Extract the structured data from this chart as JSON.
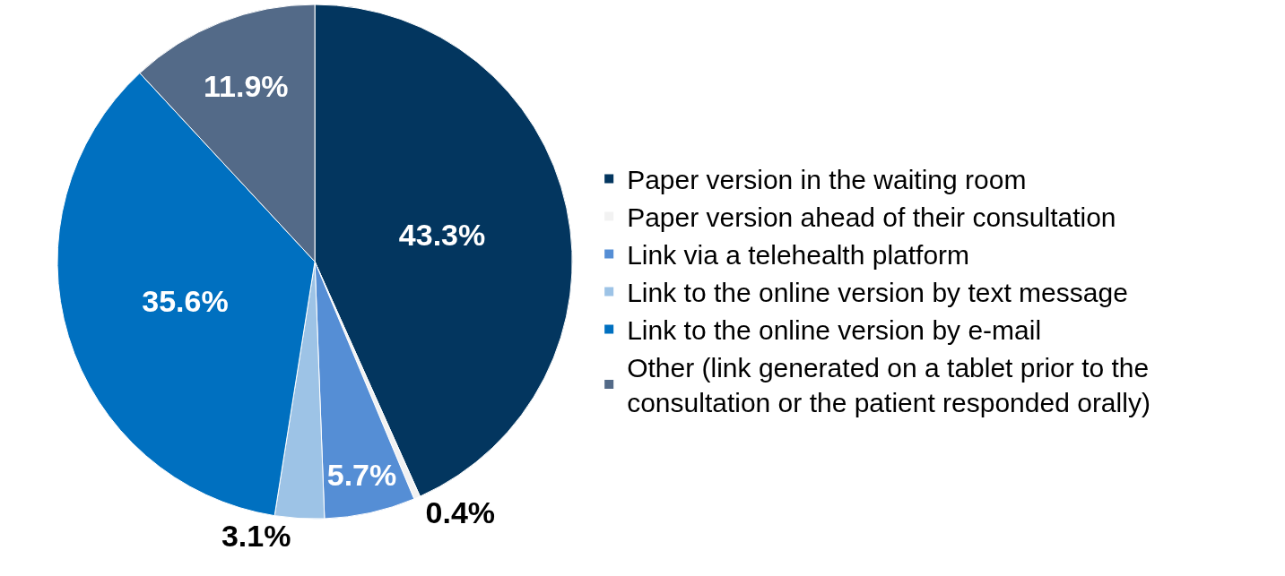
{
  "chart_data": {
    "type": "pie",
    "categories": [
      "Paper version in the waiting room",
      "Paper version ahead of their consultation",
      "Link via a telehealth platform",
      "Link to the online version by text message",
      "Link to the online version by e-mail",
      "Other (link generated on a tablet prior to the\nconsultation or the patient responded orally)"
    ],
    "values": [
      43.3,
      0.4,
      5.7,
      3.1,
      35.6,
      11.9
    ],
    "value_labels": [
      "43.3%",
      "0.4%",
      "5.7%",
      "3.1%",
      "35.6%",
      "11.9%"
    ],
    "colors": [
      "#03365f",
      "#f2f2f2",
      "#558ed5",
      "#9dc3e6",
      "#0070c0",
      "#536a88"
    ],
    "legend": "right"
  }
}
